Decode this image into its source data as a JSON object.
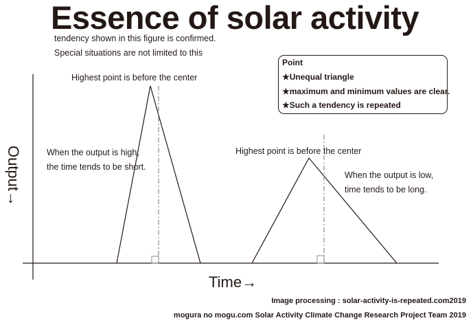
{
  "title": "Essence of solar activity",
  "subtitle_lines": [
    "tendency shown in this figure is confirmed.",
    "Special situations are not limited to this"
  ],
  "point_box": {
    "title": "Point",
    "items": [
      "★Unequal triangle",
      "★maximum and minimum values are clear.",
      "★Such a tendency is repeated"
    ]
  },
  "annotations": {
    "peak_1": "Highest point is before the center",
    "peak_2": "Highest point is before the center",
    "high_output": [
      "When the output is high,",
      "the time tends to be short."
    ],
    "low_output": [
      "When the output is low,",
      "time tends to be long."
    ]
  },
  "axes": {
    "y_label": "Output→",
    "x_label": "Time→"
  },
  "footer": {
    "line1": "Image processing : solar-activity-is-repeated.com2019",
    "line2": "mogura no mogu.com Solar Activity Climate Change Research Project Team 2019"
  },
  "colors": {
    "ink": "#231815",
    "dashed_center": "#8a8a8a"
  }
}
